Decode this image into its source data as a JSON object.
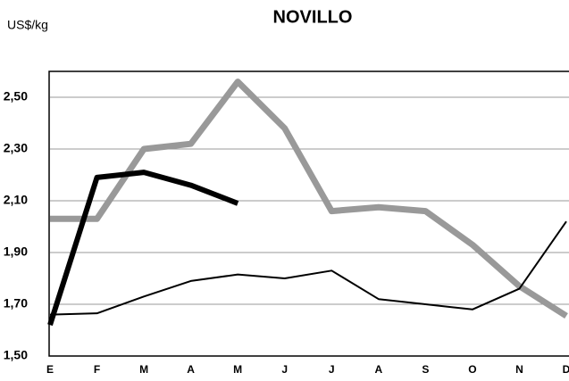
{
  "chart_data": {
    "type": "line",
    "title": "NOVILLO",
    "y_label": "US$/kg",
    "categories": [
      "E",
      "F",
      "M",
      "A",
      "M",
      "J",
      "J",
      "A",
      "S",
      "O",
      "N",
      "D"
    ],
    "series": [
      {
        "color": "#999999",
        "values": [
          2.03,
          2.03,
          2.3,
          2.32,
          2.56,
          2.38,
          2.06,
          2.075,
          2.06,
          1.93,
          1.77,
          1.655
        ]
      },
      {
        "color": "#000000",
        "values": [
          1.66,
          1.665,
          1.73,
          1.79,
          1.815,
          1.8,
          1.83,
          1.72,
          1.7,
          1.68,
          1.76,
          2.02
        ]
      },
      {
        "color": "#000000",
        "values": [
          1.62,
          2.19,
          2.21,
          2.16,
          2.09,
          null,
          null,
          null,
          null,
          null,
          null,
          null
        ]
      }
    ],
    "ylim": [
      1.5,
      2.6
    ],
    "yticks": [
      {
        "value": 1.5,
        "label": "1,50"
      },
      {
        "value": 1.7,
        "label": "1,70"
      },
      {
        "value": 1.9,
        "label": "1,90"
      },
      {
        "value": 2.1,
        "label": "2,10"
      },
      {
        "value": 2.3,
        "label": "2,30"
      },
      {
        "value": 2.5,
        "label": "2,50"
      }
    ],
    "grid": true
  }
}
